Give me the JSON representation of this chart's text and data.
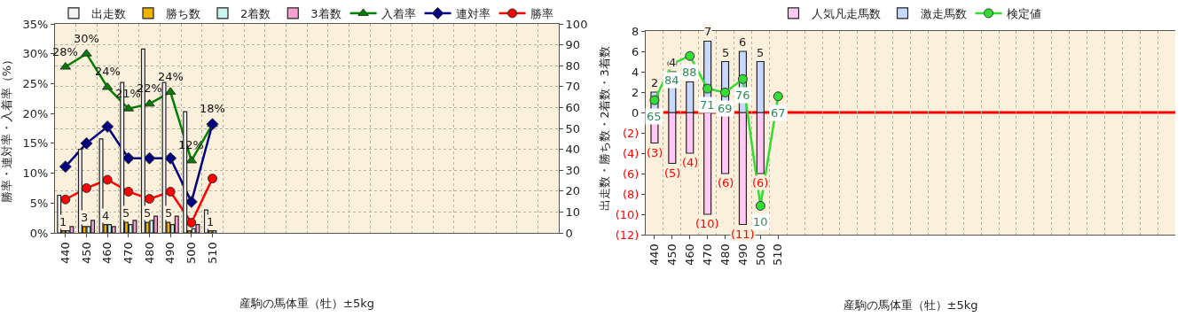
{
  "chart_data": [
    {
      "type": "bar",
      "categories": [
        "440",
        "450",
        "460",
        "470",
        "480",
        "490",
        "500",
        "510",
        null,
        null,
        null,
        null,
        null,
        null,
        null,
        null,
        null,
        null,
        null,
        null,
        null,
        null,
        null,
        null
      ],
      "xlabel": "産駒の馬体重（牡）±5kg",
      "ylabel": "勝率・連対率・入着率（%）",
      "y2label": "出走数・勝ち数・2着数・3着数",
      "ylim": [
        0,
        35
      ],
      "yticks": [
        {
          "value": 0,
          "label": "0%"
        },
        {
          "value": 5,
          "label": "5%"
        },
        {
          "value": 10,
          "label": "10%"
        },
        {
          "value": 15,
          "label": "15%"
        },
        {
          "value": 20,
          "label": "20%"
        },
        {
          "value": 25,
          "label": "25%"
        },
        {
          "value": 30,
          "label": "30%"
        },
        {
          "value": 35,
          "label": "35%"
        }
      ],
      "y2lim": [
        0,
        100
      ],
      "y2ticks": [
        0,
        10,
        20,
        30,
        40,
        50,
        60,
        70,
        80,
        90,
        100
      ],
      "grid": true,
      "legend": "top",
      "series": [
        {
          "name": "出走数",
          "color": "#f4f4f4",
          "axis": "y2",
          "values": [
            18,
            40,
            45,
            72,
            88,
            72,
            58,
            11,
            null,
            null,
            null,
            null,
            null,
            null,
            null,
            null,
            null,
            null,
            null,
            null,
            null,
            null,
            null,
            null
          ]
        },
        {
          "name": "勝ち数",
          "color": "#f0b400",
          "axis": "y2",
          "values": [
            1,
            3,
            4,
            5,
            5,
            5,
            1,
            1,
            null,
            null,
            null,
            null,
            null,
            null,
            null,
            null,
            null,
            null,
            null,
            null,
            null,
            null,
            null,
            null
          ],
          "value_labels": [
            "1",
            "3",
            "4",
            "5",
            "5",
            "5",
            null,
            "1",
            null,
            null,
            null,
            null,
            null,
            null,
            null,
            null,
            null,
            null,
            null,
            null,
            null,
            null,
            null,
            null
          ]
        },
        {
          "name": "2着数",
          "color": "#c8f5f0",
          "axis": "y2",
          "values": [
            1,
            3,
            4,
            4,
            6,
            4,
            2,
            1,
            null,
            null,
            null,
            null,
            null,
            null,
            null,
            null,
            null,
            null,
            null,
            null,
            null,
            null,
            null,
            null
          ]
        },
        {
          "name": "3着数",
          "color": "#f5a0d0",
          "axis": "y2",
          "values": [
            3,
            6,
            3,
            6,
            8,
            8,
            4,
            0,
            null,
            null,
            null,
            null,
            null,
            null,
            null,
            null,
            null,
            null,
            null,
            null,
            null,
            null,
            null,
            null
          ]
        },
        {
          "name": "入着率",
          "type": "line",
          "marker": "triangle",
          "color": "#008000",
          "values": [
            27.8,
            30.0,
            24.4,
            20.8,
            21.6,
            23.6,
            12.1,
            18.2,
            null,
            null,
            null,
            null,
            null,
            null,
            null,
            null,
            null,
            null,
            null,
            null,
            null,
            null,
            null,
            null
          ],
          "value_labels": [
            "28%",
            "30%",
            "24%",
            "21%",
            "22%",
            "24%",
            "12%",
            "18%",
            null,
            null,
            null,
            null,
            null,
            null,
            null,
            null,
            null,
            null,
            null,
            null,
            null,
            null,
            null,
            null
          ]
        },
        {
          "name": "連対率",
          "type": "line",
          "marker": "diamond",
          "color": "#000080",
          "values": [
            11.1,
            15.0,
            17.8,
            12.5,
            12.5,
            12.5,
            5.2,
            18.2,
            null,
            null,
            null,
            null,
            null,
            null,
            null,
            null,
            null,
            null,
            null,
            null,
            null,
            null,
            null,
            null
          ]
        },
        {
          "name": "勝率",
          "type": "line",
          "marker": "circle",
          "color": "#ff0000",
          "values": [
            5.6,
            7.5,
            8.9,
            6.9,
            5.7,
            6.9,
            1.7,
            9.1,
            null,
            null,
            null,
            null,
            null,
            null,
            null,
            null,
            null,
            null,
            null,
            null,
            null,
            null,
            null,
            null
          ]
        }
      ]
    },
    {
      "type": "bar",
      "categories": [
        "440",
        "450",
        "460",
        "470",
        "480",
        "490",
        "500",
        "510",
        null,
        null,
        null,
        null,
        null,
        null,
        null,
        null,
        null,
        null,
        null,
        null,
        null,
        null,
        null,
        null,
        null,
        null,
        null,
        null,
        null,
        null
      ],
      "xlabel": "産駒の馬体重（牡）±5kg",
      "ylim": [
        -12,
        8
      ],
      "yticks": [
        {
          "value": -12,
          "label": "(12)"
        },
        {
          "value": -10,
          "label": "(10)"
        },
        {
          "value": -8,
          "label": "(8)"
        },
        {
          "value": -6,
          "label": "(6)"
        },
        {
          "value": -4,
          "label": "(4)"
        },
        {
          "value": -2,
          "label": "(2)"
        },
        0,
        2,
        4,
        6,
        8
      ],
      "y2lim": [
        -5,
        101
      ],
      "grid": true,
      "legend": "top",
      "stacked": true,
      "ref_lines": [
        {
          "axis": "y",
          "value": 0,
          "color": "#ff0000"
        }
      ],
      "series": [
        {
          "name": "人気凡走馬数",
          "color": "#ffc8f5",
          "values": [
            -3,
            -5,
            -4,
            -10,
            -6,
            -11,
            -6,
            null,
            null,
            null,
            null,
            null,
            null,
            null,
            null,
            null,
            null,
            null,
            null,
            null,
            null,
            null,
            null,
            null,
            null,
            null,
            null,
            null,
            null,
            null
          ],
          "value_labels": [
            "(3)",
            "(5)",
            "(4)",
            "(10)",
            "(6)",
            "(11)",
            "(6)",
            null,
            null,
            null,
            null,
            null,
            null,
            null,
            null,
            null,
            null,
            null,
            null,
            null,
            null,
            null,
            null,
            null,
            null,
            null,
            null,
            null,
            null,
            null
          ]
        },
        {
          "name": "激走馬数",
          "color": "#c8d8ff",
          "values": [
            2,
            4,
            3,
            7,
            5,
            6,
            5,
            null,
            null,
            null,
            null,
            null,
            null,
            null,
            null,
            null,
            null,
            null,
            null,
            null,
            null,
            null,
            null,
            null,
            null,
            null,
            null,
            null,
            null,
            null
          ],
          "value_labels": [
            "2",
            "4",
            null,
            "7",
            "5",
            "6",
            "5",
            null,
            null,
            null,
            null,
            null,
            null,
            null,
            null,
            null,
            null,
            null,
            null,
            null,
            null,
            null,
            null,
            null,
            null,
            null,
            null,
            null,
            null,
            null
          ]
        },
        {
          "name": "検定値",
          "type": "line",
          "axis": "y2",
          "marker": "circle",
          "color": "#33dd33",
          "values": [
            65,
            84,
            88,
            71,
            69,
            76,
            10,
            67,
            null,
            null,
            null,
            null,
            null,
            null,
            null,
            null,
            null,
            null,
            null,
            null,
            null,
            null,
            null,
            null,
            null,
            null,
            null,
            null,
            null,
            null
          ],
          "value_labels": [
            "65",
            "84",
            "88",
            "71",
            "69",
            "76",
            "10",
            "67",
            null,
            null,
            null,
            null,
            null,
            null,
            null,
            null,
            null,
            null,
            null,
            null,
            null,
            null,
            null,
            null,
            null,
            null,
            null,
            null,
            null,
            null
          ]
        }
      ]
    }
  ]
}
